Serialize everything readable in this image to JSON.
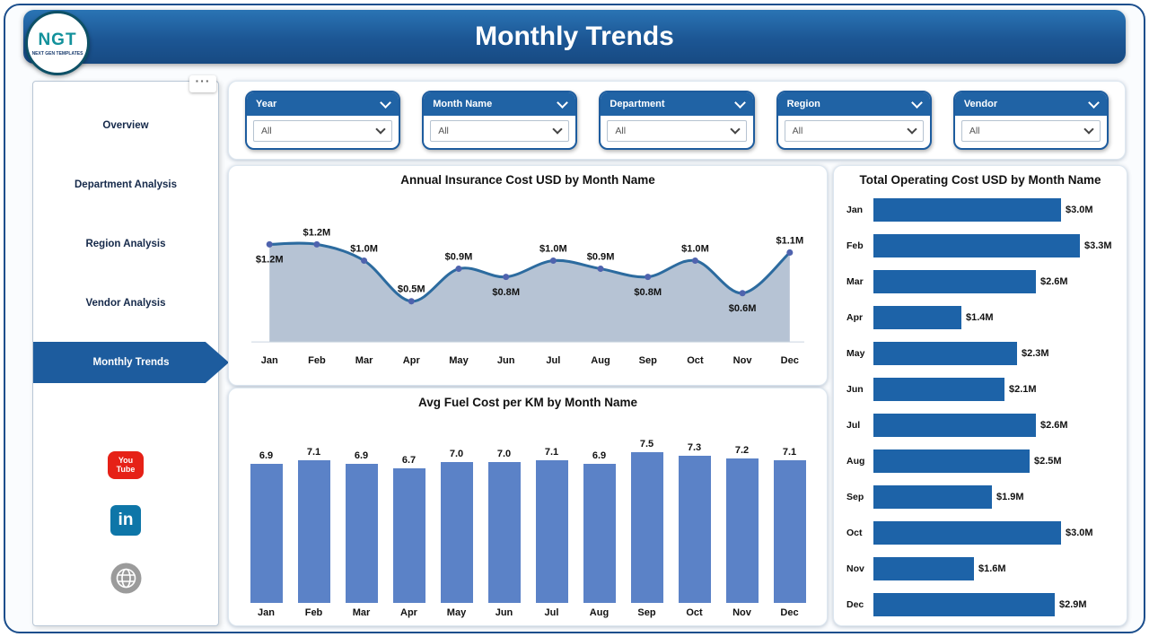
{
  "header": {
    "title": "Monthly Trends"
  },
  "logo": {
    "text": "NGT",
    "subtext": "NEXT GEN TEMPLATES"
  },
  "sidebar": {
    "more_icon": "···",
    "items": [
      {
        "label": "Overview",
        "active": false
      },
      {
        "label": "Department Analysis",
        "active": false
      },
      {
        "label": "Region Analysis",
        "active": false
      },
      {
        "label": "Vendor Analysis",
        "active": false
      },
      {
        "label": "Monthly Trends",
        "active": true
      }
    ],
    "social": [
      {
        "name": "youtube",
        "color": "#e62117",
        "lines": [
          "You",
          "Tube"
        ]
      },
      {
        "name": "linkedin",
        "color": "#0e76a8",
        "label": "in"
      },
      {
        "name": "website",
        "color": "#9b9b9b"
      }
    ]
  },
  "filters": [
    {
      "label": "Year",
      "value": "All"
    },
    {
      "label": "Month Name",
      "value": "All"
    },
    {
      "label": "Department",
      "value": "All"
    },
    {
      "label": "Region",
      "value": "All"
    },
    {
      "label": "Vendor",
      "value": "All"
    }
  ],
  "chart_data": [
    {
      "type": "area",
      "title": "Annual Insurance Cost USD by Month Name",
      "categories": [
        "Jan",
        "Feb",
        "Mar",
        "Apr",
        "May",
        "Jun",
        "Jul",
        "Aug",
        "Sep",
        "Oct",
        "Nov",
        "Dec"
      ],
      "values": [
        1.2,
        1.2,
        1.0,
        0.5,
        0.9,
        0.8,
        1.0,
        0.9,
        0.8,
        1.0,
        0.6,
        1.1
      ],
      "labels": [
        "$1.2M",
        "$1.2M",
        "$1.0M",
        "$0.5M",
        "$0.9M",
        "$0.8M",
        "$1.0M",
        "$0.9M",
        "$0.8M",
        "$1.0M",
        "$0.6M",
        "$1.1M"
      ],
      "label_side": [
        "bottom",
        "top",
        "top",
        "top",
        "top",
        "bottom",
        "top",
        "top",
        "bottom",
        "top",
        "bottom",
        "top"
      ],
      "ylim": [
        0,
        1.4
      ],
      "grid": false,
      "legend": "none",
      "xlabel": "",
      "ylabel": ""
    },
    {
      "type": "bar",
      "title": "Avg Fuel Cost per KM by Month Name",
      "categories": [
        "Jan",
        "Feb",
        "Mar",
        "Apr",
        "May",
        "Jun",
        "Jul",
        "Aug",
        "Sep",
        "Oct",
        "Nov",
        "Dec"
      ],
      "values": [
        6.9,
        7.1,
        6.9,
        6.7,
        7.0,
        7.0,
        7.1,
        6.9,
        7.5,
        7.3,
        7.2,
        7.1
      ],
      "labels": [
        "6.9",
        "7.1",
        "6.9",
        "6.7",
        "7.0",
        "7.0",
        "7.1",
        "6.9",
        "7.5",
        "7.3",
        "7.2",
        "7.1"
      ],
      "ylim": [
        0,
        7.5
      ],
      "grid": false,
      "legend": "none",
      "xlabel": "",
      "ylabel": ""
    },
    {
      "type": "bar",
      "orientation": "horizontal",
      "title": "Total Operating Cost USD by Month Name",
      "categories": [
        "Jan",
        "Feb",
        "Mar",
        "Apr",
        "May",
        "Jun",
        "Jul",
        "Aug",
        "Sep",
        "Oct",
        "Nov",
        "Dec"
      ],
      "values": [
        3.0,
        3.3,
        2.6,
        1.4,
        2.3,
        2.1,
        2.6,
        2.5,
        1.9,
        3.0,
        1.6,
        2.9
      ],
      "labels": [
        "$3.0M",
        "$3.3M",
        "$2.6M",
        "$1.4M",
        "$2.3M",
        "$2.1M",
        "$2.6M",
        "$2.5M",
        "$1.9M",
        "$3.0M",
        "$1.6M",
        "$2.9M"
      ],
      "xlim": [
        0,
        3.3
      ],
      "grid": false,
      "legend": "none",
      "xlabel": "",
      "ylabel": ""
    }
  ],
  "colors": {
    "header_blue": "#1d5c9e",
    "slicer_blue": "#2063a5",
    "area_line": "#2c6b9f",
    "area_fill": "#a9b9cc",
    "marker": "#4f63ae",
    "column_bar": "#5b82c7",
    "hbar": "#1d63a8",
    "active_nav": "#1d5c9e",
    "youtube_red": "#e62117",
    "linkedin_blue": "#0e76a8",
    "globe_gray": "#9b9b9b"
  }
}
